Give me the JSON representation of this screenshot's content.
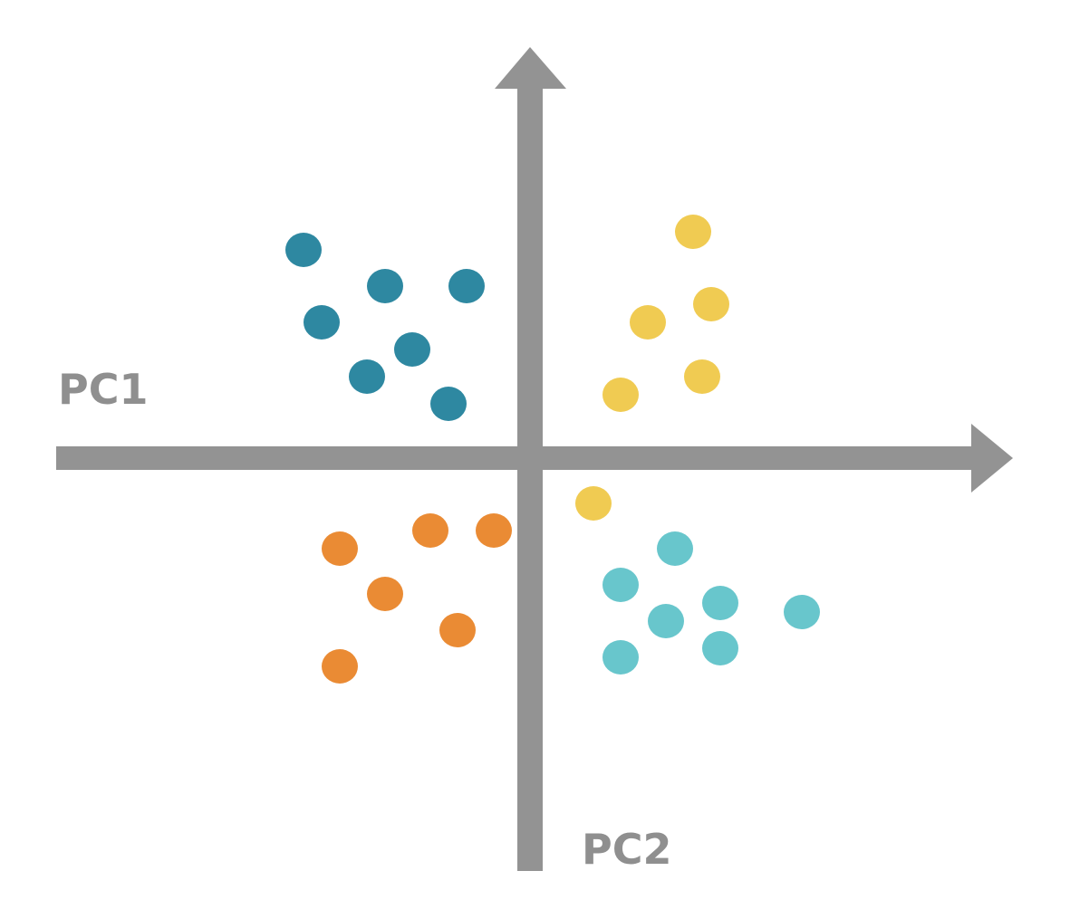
{
  "chart_data": {
    "type": "scatter",
    "xlabel": "PC1",
    "ylabel": "PC2",
    "xlim": [
      -5.2,
      5.4
    ],
    "ylim": [
      -4.6,
      4.5
    ],
    "grid": false,
    "axes_style": "arrows crossing at origin",
    "series": [
      {
        "color": "#2e88a1",
        "points": [
          {
            "x": -2.5,
            "y": 2.3
          },
          {
            "x": -1.6,
            "y": 1.9
          },
          {
            "x": -0.7,
            "y": 1.9
          },
          {
            "x": -2.3,
            "y": 1.5
          },
          {
            "x": -1.3,
            "y": 1.2
          },
          {
            "x": -1.8,
            "y": 0.9
          },
          {
            "x": -0.9,
            "y": 0.6
          }
        ]
      },
      {
        "color": "#f0cb52",
        "points": [
          {
            "x": 1.8,
            "y": 2.5
          },
          {
            "x": 2.0,
            "y": 1.7
          },
          {
            "x": 1.3,
            "y": 1.5
          },
          {
            "x": 1.9,
            "y": 0.9
          },
          {
            "x": 1.0,
            "y": 0.7
          },
          {
            "x": 0.7,
            "y": -0.5
          }
        ]
      },
      {
        "color": "#ea8b34",
        "points": [
          {
            "x": -0.4,
            "y": -0.8
          },
          {
            "x": -1.1,
            "y": -0.8
          },
          {
            "x": -2.1,
            "y": -1.0
          },
          {
            "x": -1.6,
            "y": -1.5
          },
          {
            "x": -0.8,
            "y": -1.9
          },
          {
            "x": -2.1,
            "y": -2.3
          }
        ]
      },
      {
        "color": "#68c6cc",
        "points": [
          {
            "x": 1.6,
            "y": -1.0
          },
          {
            "x": 1.0,
            "y": -1.4
          },
          {
            "x": 2.1,
            "y": -1.6
          },
          {
            "x": 3.0,
            "y": -1.7
          },
          {
            "x": 1.5,
            "y": -1.8
          },
          {
            "x": 1.0,
            "y": -2.2
          },
          {
            "x": 2.1,
            "y": -2.1
          }
        ]
      }
    ]
  }
}
